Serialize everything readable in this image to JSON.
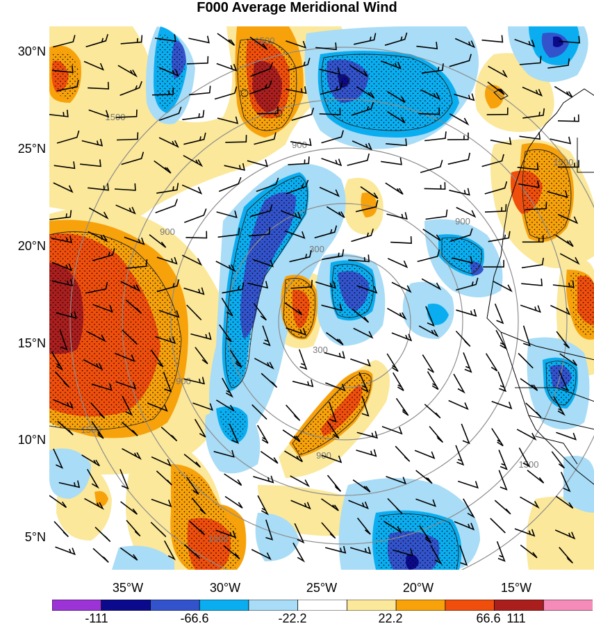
{
  "title": "F000 Average Meridional Wind",
  "map": {
    "lat_labels": [
      "30°N",
      "25°N",
      "20°N",
      "15°N",
      "10°N",
      "5°N"
    ],
    "lon_labels": [
      "35°W",
      "30°W",
      "25°W",
      "20°W",
      "15°W"
    ],
    "range_ring_labels": [
      "300",
      "300",
      "900",
      "900",
      "900",
      "900",
      "900",
      "1500",
      "1500",
      "1500",
      "1500",
      "1500",
      "1500"
    ]
  },
  "colorbar": {
    "colors": [
      "#9b33d6",
      "#0c0a8c",
      "#3253cc",
      "#0aaef0",
      "#a9dcf6",
      "#ffffff",
      "#fbe89a",
      "#f7a20b",
      "#f04e0c",
      "#aa1e1e",
      "#f58bb8"
    ],
    "labels": [
      "-111",
      "-66.6",
      "-22.2",
      "22.2",
      "66.6",
      "111"
    ]
  }
}
